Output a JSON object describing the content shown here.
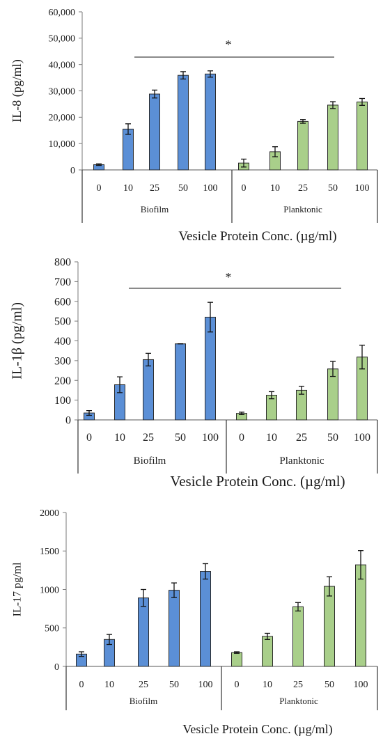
{
  "chart_data": [
    {
      "type": "bar",
      "title": "",
      "ylabel": "IL-8 (pg/ml)",
      "xlabel": "Vesicle Protein Conc. (µg/ml)",
      "ylim": [
        0,
        60000
      ],
      "yticks": [
        "0",
        "10,000",
        "20,000",
        "30,000",
        "40,000",
        "50,000",
        "60,000"
      ],
      "categories": [
        "0",
        "10",
        "25",
        "50",
        "100"
      ],
      "groups": [
        "Biofilm",
        "Planktonic"
      ],
      "series": [
        {
          "name": "Biofilm",
          "color": "#5b8fd6",
          "values": [
            2000,
            15500,
            28800,
            35900,
            36400
          ],
          "errors": [
            300,
            2000,
            1500,
            1400,
            1200
          ]
        },
        {
          "name": "Planktonic",
          "color": "#a9cf8a",
          "values": [
            2600,
            6900,
            18400,
            24600,
            25800
          ],
          "errors": [
            1500,
            1900,
            700,
            1300,
            1300
          ]
        }
      ],
      "annotation": "*",
      "grid": false,
      "legend": "none"
    },
    {
      "type": "bar",
      "title": "",
      "ylabel": "IL-1β (pg/ml)",
      "xlabel": "Vesicle Protein Conc. (µg/ml)",
      "ylim": [
        0,
        800
      ],
      "yticks": [
        "0",
        "100",
        "200",
        "300",
        "400",
        "500",
        "600",
        "700",
        "800"
      ],
      "categories": [
        "0",
        "10",
        "25",
        "50",
        "100"
      ],
      "groups": [
        "Biofilm",
        "Planktonic"
      ],
      "series": [
        {
          "name": "Biofilm",
          "color": "#5b8fd6",
          "values": [
            35,
            178,
            305,
            385,
            520
          ],
          "errors": [
            12,
            40,
            32,
            0,
            75
          ]
        },
        {
          "name": "Planktonic",
          "color": "#a9cf8a",
          "values": [
            33,
            125,
            150,
            258,
            318
          ],
          "errors": [
            6,
            18,
            20,
            38,
            60
          ]
        }
      ],
      "annotation": "*",
      "grid": false,
      "legend": "none"
    },
    {
      "type": "bar",
      "title": "",
      "ylabel": "IL-17 pg/ml",
      "xlabel": "Vesicle Protein Conc. (µg/ml)",
      "ylim": [
        0,
        2000
      ],
      "yticks": [
        "0",
        "500",
        "1000",
        "1500",
        "2000"
      ],
      "categories": [
        "0",
        "10",
        "25",
        "50",
        "100"
      ],
      "groups": [
        "Biofilm",
        "Planktonic"
      ],
      "series": [
        {
          "name": "Biofilm",
          "color": "#5b8fd6",
          "values": [
            160,
            350,
            890,
            990,
            1235
          ],
          "errors": [
            30,
            65,
            110,
            95,
            100
          ]
        },
        {
          "name": "Planktonic",
          "color": "#a9cf8a",
          "values": [
            180,
            390,
            775,
            1040,
            1320
          ],
          "errors": [
            10,
            40,
            55,
            125,
            185
          ]
        }
      ],
      "annotation": "",
      "grid": false,
      "legend": "none"
    }
  ]
}
